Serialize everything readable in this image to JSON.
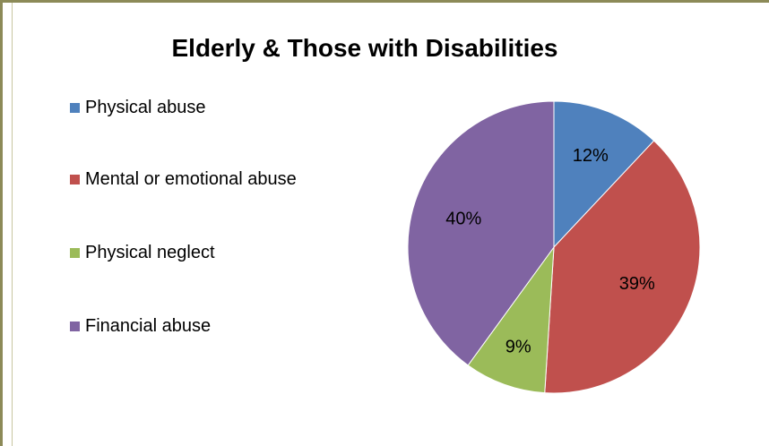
{
  "chart_data": {
    "type": "pie",
    "title": "Elderly & Those with Disabilities",
    "categories": [
      "Physical abuse",
      "Mental or emotional abuse",
      "Physical neglect",
      "Financial abuse"
    ],
    "values": [
      12,
      39,
      9,
      40
    ],
    "labels": [
      "12%",
      "39%",
      "9%",
      "40%"
    ],
    "colors": [
      "#4f81bd",
      "#c0504d",
      "#9bbb59",
      "#8064a2"
    ],
    "legend_position": "left"
  }
}
